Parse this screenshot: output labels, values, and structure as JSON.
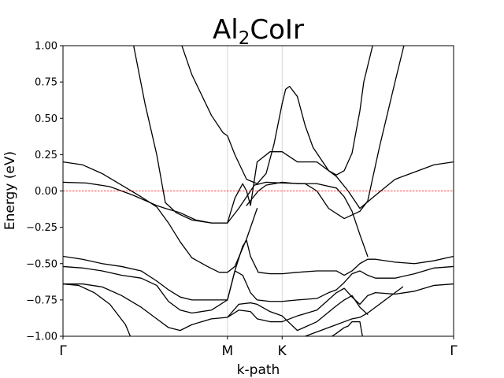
{
  "chart_data": {
    "type": "line",
    "title": "Al",
    "title_sub": "2",
    "title_rest": "CoIr",
    "xlabel": "k-path",
    "ylabel": "Energy (eV)",
    "ylim": [
      -1.0,
      1.0
    ],
    "yticks": [
      -1.0,
      -0.75,
      -0.5,
      -0.25,
      0.0,
      0.25,
      0.5,
      0.75,
      1.0
    ],
    "ytick_labels": [
      "−1.00",
      "−0.75",
      "−0.50",
      "−0.25",
      "0.00",
      "0.25",
      "0.50",
      "0.75",
      "1.00"
    ],
    "xlim": [
      0,
      1
    ],
    "high_symmetry_points": [
      {
        "label": "Γ",
        "x": 0.0
      },
      {
        "label": "M",
        "x": 0.421
      },
      {
        "label": "K",
        "x": 0.561
      },
      {
        "label": "Γ",
        "x": 1.0
      }
    ],
    "fermi_level": 0.0,
    "fermi_color": "#ff0000",
    "band_color": "#000000",
    "vline_color": "#cccccc",
    "series": [
      {
        "x": [
          0.175,
          0.21,
          0.24,
          0.262,
          0.29,
          0.33,
          0.38,
          0.421
        ],
        "y": [
          1.08,
          0.6,
          0.25,
          -0.08,
          -0.15,
          -0.2,
          -0.22,
          -0.22
        ]
      },
      {
        "x": [
          0.421,
          0.45,
          0.49,
          0.52,
          0.561
        ],
        "y": [
          -0.22,
          -0.12,
          0.04,
          0.06,
          0.055
        ]
      },
      {
        "x": [
          0.561,
          0.62,
          0.65,
          0.68,
          0.72,
          0.76,
          0.78,
          0.81,
          0.85,
          0.88
        ],
        "y": [
          0.055,
          0.05,
          0.0,
          -0.12,
          -0.19,
          -0.14,
          -0.07,
          0.3,
          0.75,
          1.08
        ]
      },
      {
        "x": [
          0.294,
          0.33,
          0.38,
          0.41,
          0.421,
          0.44,
          0.47,
          0.497,
          0.52,
          0.54,
          0.561
        ],
        "y": [
          1.08,
          0.8,
          0.52,
          0.4,
          0.38,
          0.25,
          0.08,
          0.05,
          0.12,
          0.32,
          0.6
        ]
      },
      {
        "x": [
          0.561,
          0.57,
          0.58,
          0.6,
          0.62,
          0.64,
          0.66,
          0.68,
          0.7,
          0.72,
          0.74,
          0.76,
          0.77,
          0.8,
          0.83,
          0.86
        ],
        "y": [
          0.6,
          0.7,
          0.72,
          0.65,
          0.45,
          0.3,
          0.22,
          0.14,
          0.11,
          0.14,
          0.26,
          0.55,
          0.75,
          1.08,
          1.08,
          1.08
        ]
      },
      {
        "x": [
          0.0,
          0.05,
          0.1,
          0.15,
          0.2,
          0.24,
          0.27,
          0.3,
          0.33,
          0.37,
          0.4,
          0.421,
          0.44,
          0.47,
          0.497
        ],
        "y": [
          0.2,
          0.18,
          0.12,
          0.04,
          -0.04,
          -0.11,
          -0.22,
          -0.35,
          -0.46,
          -0.52,
          -0.56,
          -0.56,
          -0.52,
          -0.33,
          -0.12
        ]
      },
      {
        "x": [
          0.0,
          0.06,
          0.12,
          0.18,
          0.24,
          0.262,
          0.3,
          0.34,
          0.38,
          0.421,
          0.44,
          0.46,
          0.47,
          0.48,
          0.497,
          0.53,
          0.561
        ],
        "y": [
          0.06,
          0.055,
          0.03,
          -0.03,
          -0.1,
          -0.12,
          -0.15,
          -0.2,
          -0.22,
          -0.22,
          -0.05,
          0.05,
          0.0,
          -0.1,
          0.2,
          0.27,
          0.27
        ]
      },
      {
        "x": [
          0.561,
          0.6,
          0.65,
          0.7,
          0.73,
          0.76,
          0.8,
          0.85,
          0.9,
          0.95,
          1.0
        ],
        "y": [
          0.27,
          0.2,
          0.2,
          0.1,
          0.0,
          -0.12,
          -0.03,
          0.08,
          0.13,
          0.18,
          0.2
        ]
      },
      {
        "x": [
          0.47,
          0.5,
          0.52,
          0.561,
          0.6,
          0.65,
          0.7,
          0.72,
          0.74,
          0.76,
          0.78
        ],
        "y": [
          -0.1,
          0.0,
          0.04,
          0.06,
          0.05,
          0.05,
          0.02,
          -0.04,
          -0.14,
          -0.3,
          -0.45
        ]
      },
      {
        "x": [
          0.0,
          0.05,
          0.1,
          0.15,
          0.2,
          0.24,
          0.27,
          0.3,
          0.33,
          0.38,
          0.421,
          0.44,
          0.46,
          0.47,
          0.48,
          0.5,
          0.53,
          0.561,
          0.6,
          0.65,
          0.7,
          0.72,
          0.74,
          0.76,
          0.78,
          0.8,
          0.85,
          0.9,
          0.95,
          1.0
        ],
        "y": [
          -0.45,
          -0.47,
          -0.5,
          -0.52,
          -0.55,
          -0.62,
          -0.68,
          -0.73,
          -0.75,
          -0.75,
          -0.75,
          -0.55,
          -0.38,
          -0.34,
          -0.45,
          -0.56,
          -0.57,
          -0.57,
          -0.56,
          -0.55,
          -0.55,
          -0.58,
          -0.55,
          -0.5,
          -0.47,
          -0.47,
          -0.49,
          -0.5,
          -0.48,
          -0.45
        ]
      },
      {
        "x": [
          0.0,
          0.05,
          0.1,
          0.15,
          0.2,
          0.24,
          0.27,
          0.3,
          0.33,
          0.38,
          0.421,
          0.44,
          0.46,
          0.48,
          0.497,
          0.53,
          0.561,
          0.6,
          0.65,
          0.68,
          0.7,
          0.72,
          0.74,
          0.76,
          0.78,
          0.8,
          0.85,
          0.9,
          0.95,
          1.0
        ],
        "y": [
          -0.52,
          -0.53,
          -0.55,
          -0.58,
          -0.6,
          -0.65,
          -0.76,
          -0.82,
          -0.84,
          -0.82,
          -0.75,
          -0.55,
          -0.58,
          -0.7,
          -0.75,
          -0.76,
          -0.76,
          -0.75,
          -0.74,
          -0.7,
          -0.68,
          -0.63,
          -0.57,
          -0.55,
          -0.58,
          -0.6,
          -0.6,
          -0.57,
          -0.53,
          -0.52
        ]
      },
      {
        "x": [
          0.0,
          0.05,
          0.1,
          0.15,
          0.2,
          0.24,
          0.27,
          0.3,
          0.33,
          0.38,
          0.421,
          0.45,
          0.48,
          0.497,
          0.53,
          0.561,
          0.6,
          0.65,
          0.7,
          0.72,
          0.74,
          0.76,
          0.78,
          0.8,
          0.85,
          0.9,
          0.95,
          1.0
        ],
        "y": [
          -0.64,
          -0.64,
          -0.66,
          -0.72,
          -0.8,
          -0.88,
          -0.94,
          -0.96,
          -0.92,
          -0.88,
          -0.87,
          -0.82,
          -0.83,
          -0.88,
          -0.9,
          -0.9,
          -0.86,
          -0.82,
          -0.7,
          -0.67,
          -0.73,
          -0.78,
          -0.72,
          -0.7,
          -0.71,
          -0.69,
          -0.65,
          -0.64
        ]
      },
      {
        "x": [
          0.421,
          0.45,
          0.48,
          0.497,
          0.53,
          0.561,
          0.6,
          0.65,
          0.7,
          0.72,
          0.74,
          0.76,
          0.78
        ],
        "y": [
          -0.87,
          -0.78,
          -0.77,
          -0.78,
          -0.83,
          -0.86,
          -0.96,
          -0.9,
          -0.79,
          -0.75,
          -0.72,
          -0.8,
          -0.85
        ]
      },
      {
        "x": [
          0.0,
          0.04,
          0.08,
          0.12,
          0.16,
          0.18
        ],
        "y": [
          -0.64,
          -0.65,
          -0.7,
          -0.78,
          -0.92,
          -1.05
        ]
      },
      {
        "x": [
          0.59,
          0.62,
          0.66,
          0.7,
          0.72,
          0.74,
          0.76,
          0.78,
          0.8,
          0.83,
          0.86,
          0.87
        ],
        "y": [
          -1.05,
          -1.0,
          -0.96,
          -0.92,
          -0.9,
          -0.88,
          -0.87,
          -0.84,
          -0.8,
          -0.74,
          -0.68,
          -0.66
        ]
      },
      {
        "x": [
          0.66,
          0.7,
          0.72,
          0.73,
          0.74,
          0.76,
          0.77
        ],
        "y": [
          -1.05,
          -0.98,
          -0.94,
          -0.93,
          -0.9,
          -0.9,
          -1.05
        ]
      }
    ]
  }
}
